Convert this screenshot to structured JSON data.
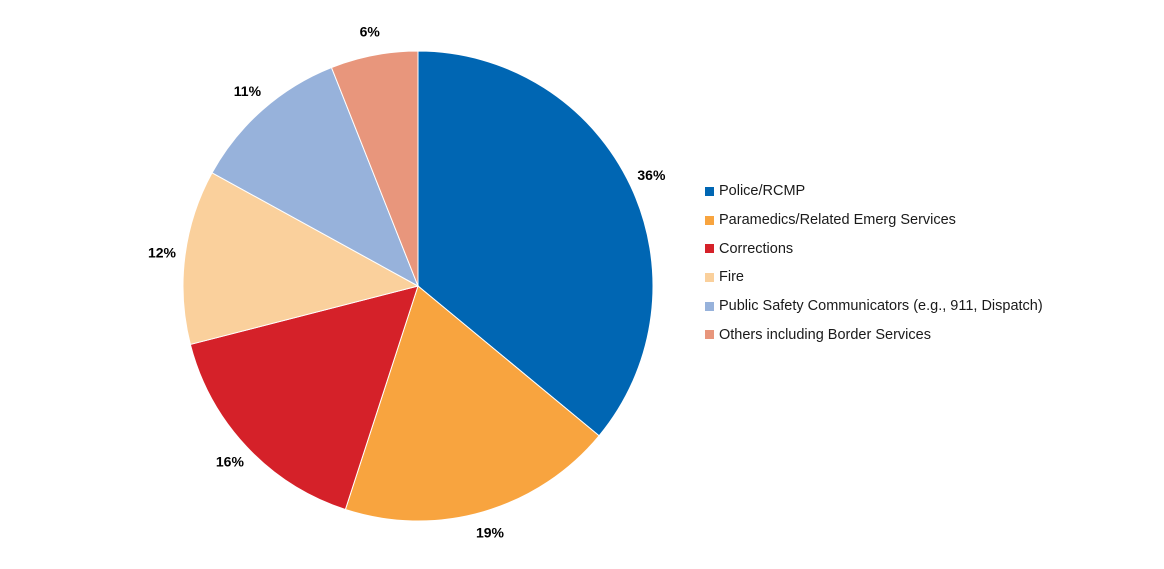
{
  "chart_data": {
    "type": "pie",
    "title": "",
    "legend_position": "right",
    "slices": [
      {
        "label": "Police/RCMP",
        "value": 36,
        "display": "36%",
        "color": "#0066B3"
      },
      {
        "label": "Paramedics/Related Emerg Services",
        "value": 19,
        "display": "19%",
        "color": "#F8A43F"
      },
      {
        "label": "Corrections",
        "value": 16,
        "display": "16%",
        "color": "#D52129"
      },
      {
        "label": "Fire",
        "value": 12,
        "display": "12%",
        "color": "#FAD09C"
      },
      {
        "label": "Public Safety Communicators (e.g., 911, Dispatch)",
        "value": 11,
        "display": "11%",
        "color": "#97B2DB"
      },
      {
        "label": "Others including Border Services",
        "value": 6,
        "display": "6%",
        "color": "#E8967C"
      }
    ]
  }
}
